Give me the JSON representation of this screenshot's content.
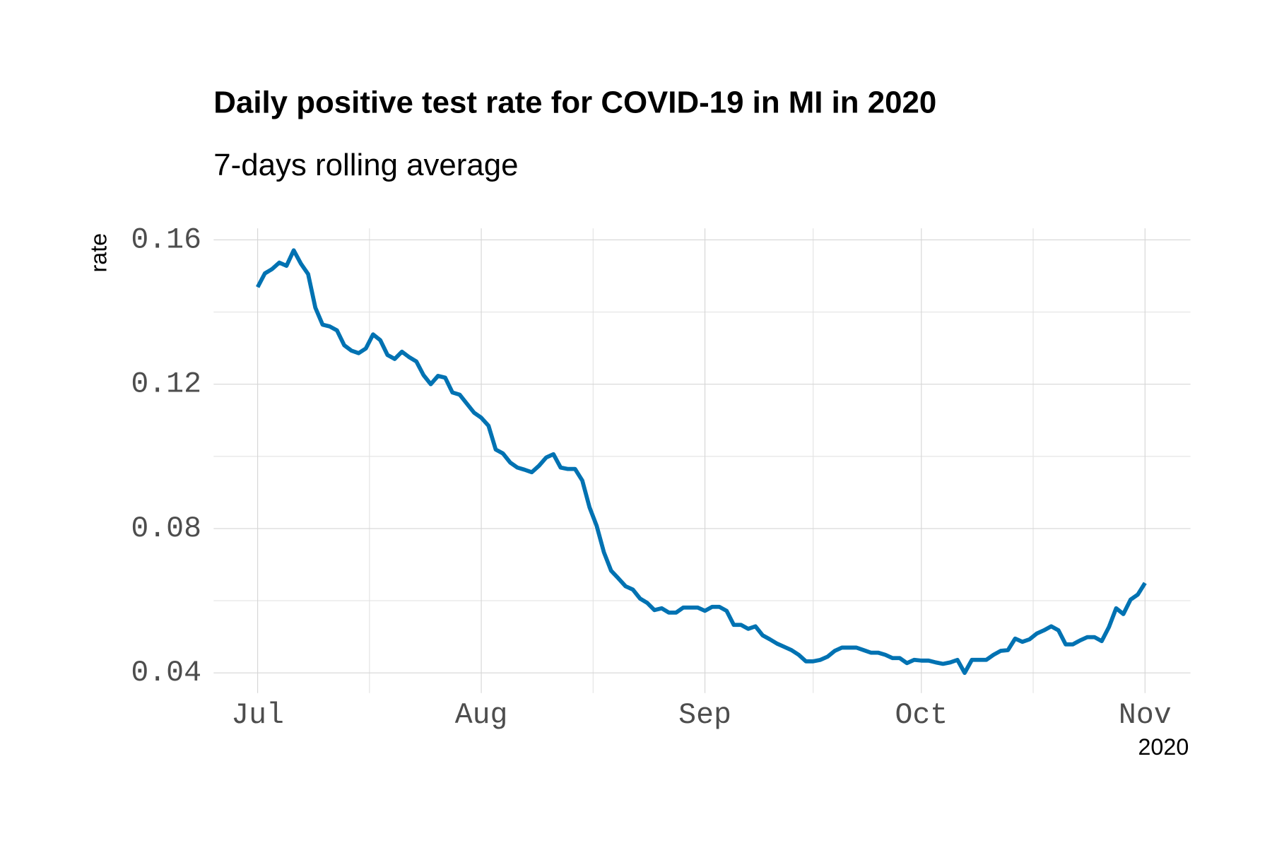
{
  "chart_data": {
    "type": "line",
    "title": "Daily positive test rate for COVID-19 in MI in 2020",
    "subtitle": "7-days rolling average",
    "y_label": "rate",
    "x_label": "2020",
    "color": "#0072b2",
    "grid": true,
    "values": [
      0.1469,
      0.1507,
      0.1519,
      0.1537,
      0.1528,
      0.1571,
      0.1534,
      0.1505,
      0.1412,
      0.1365,
      0.136,
      0.1349,
      0.1308,
      0.1293,
      0.1286,
      0.1299,
      0.1338,
      0.1322,
      0.1281,
      0.127,
      0.129,
      0.1275,
      0.1263,
      0.1225,
      0.12,
      0.1223,
      0.1218,
      0.1177,
      0.1171,
      0.1146,
      0.1121,
      0.1107,
      0.1085,
      0.1019,
      0.1008,
      0.0983,
      0.0969,
      0.0963,
      0.0956,
      0.0974,
      0.0997,
      0.1006,
      0.0969,
      0.0965,
      0.0965,
      0.0933,
      0.0859,
      0.0807,
      0.0734,
      0.0683,
      0.0662,
      0.064,
      0.0631,
      0.0606,
      0.0594,
      0.0574,
      0.0579,
      0.0567,
      0.0567,
      0.0581,
      0.0581,
      0.0581,
      0.0572,
      0.0583,
      0.0583,
      0.0572,
      0.0533,
      0.0533,
      0.0522,
      0.0529,
      0.0504,
      0.0493,
      0.0481,
      0.0472,
      0.0463,
      0.045,
      0.0432,
      0.0432,
      0.0436,
      0.0445,
      0.0461,
      0.047,
      0.047,
      0.047,
      0.0463,
      0.0456,
      0.0456,
      0.045,
      0.0441,
      0.0441,
      0.0427,
      0.0436,
      0.0434,
      0.0434,
      0.0429,
      0.0425,
      0.0429,
      0.0436,
      0.04,
      0.0436,
      0.0436,
      0.0436,
      0.045,
      0.0461,
      0.0463,
      0.0495,
      0.0486,
      0.0493,
      0.0509,
      0.0518,
      0.0529,
      0.0518,
      0.0479,
      0.0479,
      0.049,
      0.0499,
      0.0499,
      0.0488,
      0.0527,
      0.0579,
      0.0563,
      0.0603,
      0.0617,
      0.0649
    ],
    "xlim": [
      -6.1,
      129.3
    ],
    "xticks": [
      {
        "value": 0,
        "label": "Jul"
      },
      {
        "value": 31,
        "label": "Aug"
      },
      {
        "value": 62,
        "label": "Sep"
      },
      {
        "value": 92,
        "label": "Oct"
      },
      {
        "value": 123,
        "label": "Nov"
      }
    ],
    "x_minor_ticks": [
      15.5,
      46.5,
      77,
      107.5
    ],
    "ylim": [
      0.0344,
      0.1632
    ],
    "yticks": [
      {
        "value": 0.04,
        "label": "0.04"
      },
      {
        "value": 0.08,
        "label": "0.08"
      },
      {
        "value": 0.12,
        "label": "0.12"
      },
      {
        "value": 0.16,
        "label": "0.16"
      }
    ],
    "y_minor_ticks": [
      0.06,
      0.1,
      0.14
    ]
  }
}
